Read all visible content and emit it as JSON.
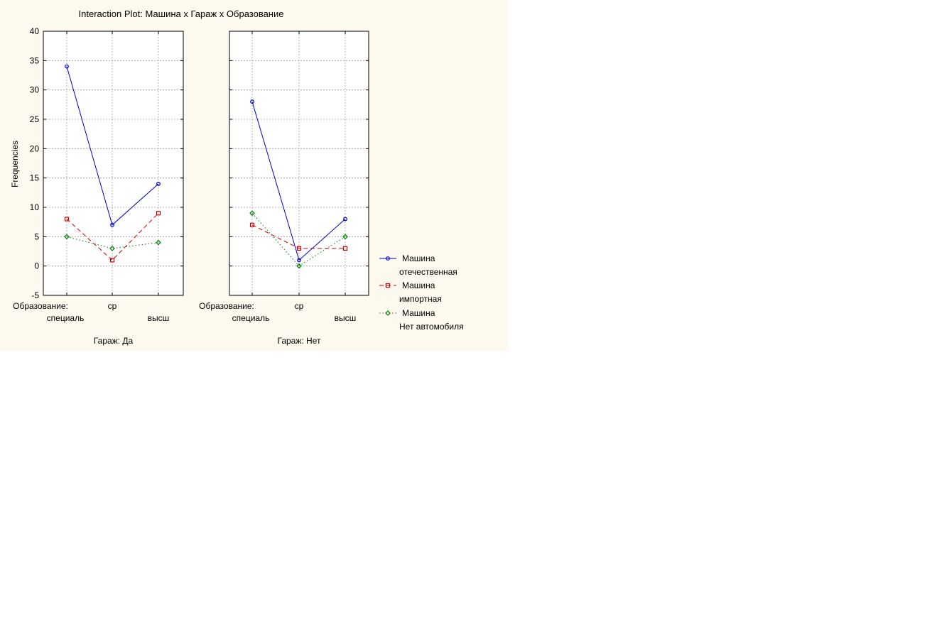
{
  "chart_data": {
    "type": "line",
    "title": "Interaction Plot: Машина x Гараж x Образование",
    "ylabel": "Frequencies",
    "ylim": [
      -5,
      40
    ],
    "yticks": [
      -5,
      0,
      5,
      10,
      15,
      20,
      25,
      30,
      35,
      40
    ],
    "grid": true,
    "legend_position": "right",
    "x_factor_label": "Образование:",
    "categories": [
      "специаль",
      "ср",
      "высш"
    ],
    "legend": [
      {
        "line1": "Машина",
        "line2": "отечественная"
      },
      {
        "line1": "Машина",
        "line2": "импортная"
      },
      {
        "line1": "Машина",
        "line2": "Нет автомобиля"
      }
    ],
    "series_style": [
      {
        "color": "#0000cc",
        "dash": "none",
        "marker": "circle"
      },
      {
        "color": "#cc0000",
        "dash": "6,4",
        "marker": "square"
      },
      {
        "color": "#008000",
        "dash": "1.5,3",
        "marker": "diamond"
      }
    ],
    "panels": [
      {
        "label": "Гараж: Да",
        "series": [
          {
            "values": [
              34,
              7,
              14
            ]
          },
          {
            "values": [
              8,
              1,
              9
            ]
          },
          {
            "values": [
              5,
              3,
              4
            ]
          }
        ]
      },
      {
        "label": "Гараж: Нет",
        "series": [
          {
            "values": [
              28,
              1,
              8
            ]
          },
          {
            "values": [
              7,
              3,
              3
            ]
          },
          {
            "values": [
              9,
              0,
              5
            ]
          }
        ]
      }
    ]
  }
}
